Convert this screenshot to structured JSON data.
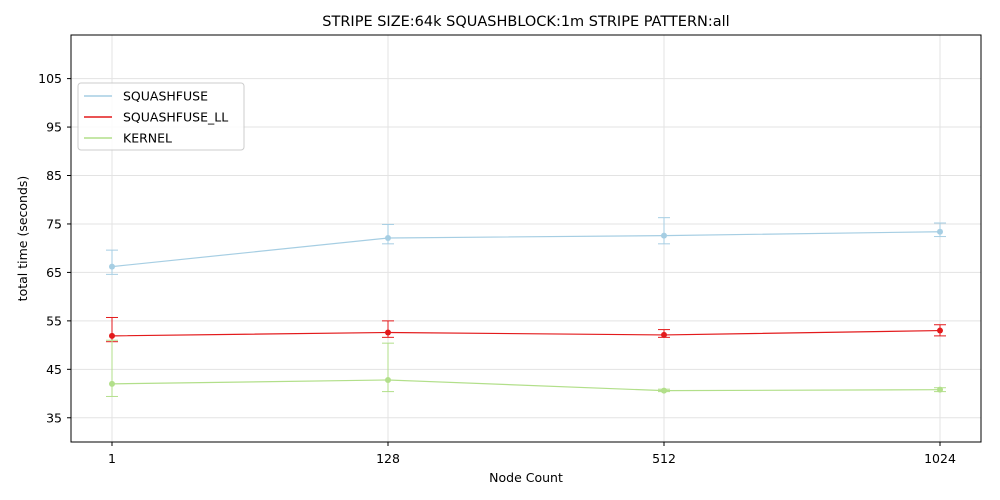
{
  "chart_data": {
    "type": "line",
    "title": "STRIPE SIZE:64k SQUASHBLOCK:1m STRIPE PATTERN:all",
    "xlabel": "Node Count",
    "ylabel": "total time (seconds)",
    "categories": [
      "1",
      "128",
      "512",
      "1024"
    ],
    "yticks": [
      35,
      45,
      55,
      65,
      75,
      85,
      95,
      105
    ],
    "ylim": [
      30,
      114
    ],
    "grid": true,
    "legend_position": "upper-left",
    "series": [
      {
        "name": "SQUASHFUSE",
        "color": "#a6cee3",
        "values": [
          66.2,
          72.1,
          72.6,
          73.4
        ],
        "err_low": [
          64.6,
          70.9,
          70.9,
          72.4
        ],
        "err_high": [
          69.6,
          74.9,
          76.3,
          75.2
        ]
      },
      {
        "name": "SQUASHFUSE_LL",
        "color": "#e31a1c",
        "values": [
          51.9,
          52.6,
          52.1,
          53.0
        ],
        "err_low": [
          50.7,
          51.6,
          51.6,
          51.9
        ],
        "err_high": [
          55.7,
          55.0,
          53.2,
          54.2
        ]
      },
      {
        "name": "KERNEL",
        "color": "#b2df8a",
        "values": [
          42.0,
          42.8,
          40.6,
          40.8
        ],
        "err_low": [
          39.4,
          40.4,
          40.4,
          40.4
        ],
        "err_high": [
          51.0,
          50.4,
          40.9,
          41.2
        ]
      }
    ]
  }
}
